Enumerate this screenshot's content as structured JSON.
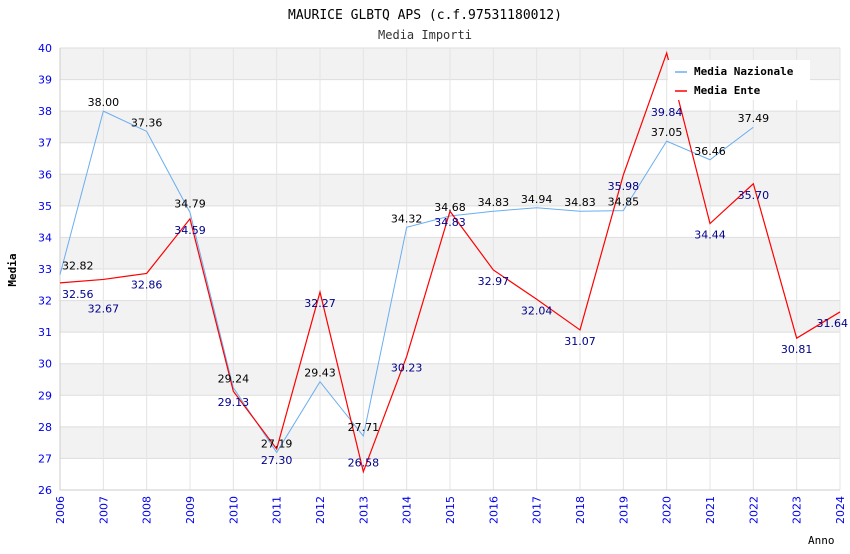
{
  "chart_data": {
    "type": "line",
    "title": "MAURICE GLBTQ APS (c.f.97531180012)",
    "subtitle": "Media Importi",
    "xlabel": "Anno",
    "ylabel": "Media",
    "ylim": [
      26,
      40
    ],
    "xlim": [
      2006,
      2024
    ],
    "x": [
      2006,
      2007,
      2008,
      2009,
      2010,
      2011,
      2012,
      2013,
      2014,
      2015,
      2016,
      2017,
      2018,
      2019,
      2020,
      2021,
      2022,
      2023,
      2024
    ],
    "yticks": [
      "26",
      "27",
      "28",
      "29",
      "30",
      "31",
      "32",
      "33",
      "34",
      "35",
      "36",
      "37",
      "38",
      "39",
      "40"
    ],
    "series": [
      {
        "name": "Media Nazionale",
        "color": "#6aaef0",
        "label_color": "#000000",
        "values": [
          32.82,
          38.0,
          37.36,
          34.79,
          29.24,
          27.19,
          29.43,
          27.71,
          34.32,
          34.68,
          34.83,
          34.94,
          34.83,
          34.85,
          37.05,
          36.46,
          37.49,
          null,
          null
        ],
        "labels": [
          "32.82",
          "38.00",
          "37.36",
          "34.79",
          "29.24",
          "27.19",
          "29.43",
          "27.71",
          "34.32",
          "34.68",
          "34.83",
          "34.94",
          "34.83",
          "34.85",
          "37.05",
          "36.46",
          "37.49",
          "",
          ""
        ]
      },
      {
        "name": "Media Ente",
        "color": "#ff0000",
        "label_color": "#00008b",
        "values": [
          32.56,
          32.67,
          32.86,
          34.59,
          29.13,
          27.3,
          32.27,
          26.58,
          30.23,
          34.83,
          32.97,
          32.04,
          31.07,
          35.98,
          39.84,
          34.44,
          35.7,
          30.81,
          31.64
        ],
        "labels": [
          "32.56",
          "32.67",
          "32.86",
          "34.59",
          "29.13",
          "27.30",
          "32.27",
          "26.58",
          "30.23",
          "34.83",
          "32.97",
          "32.04",
          "31.07",
          "35.98",
          "39.84",
          "34.44",
          "35.70",
          "30.81",
          "31.64"
        ]
      }
    ],
    "grid": true,
    "legend": "top-right"
  }
}
